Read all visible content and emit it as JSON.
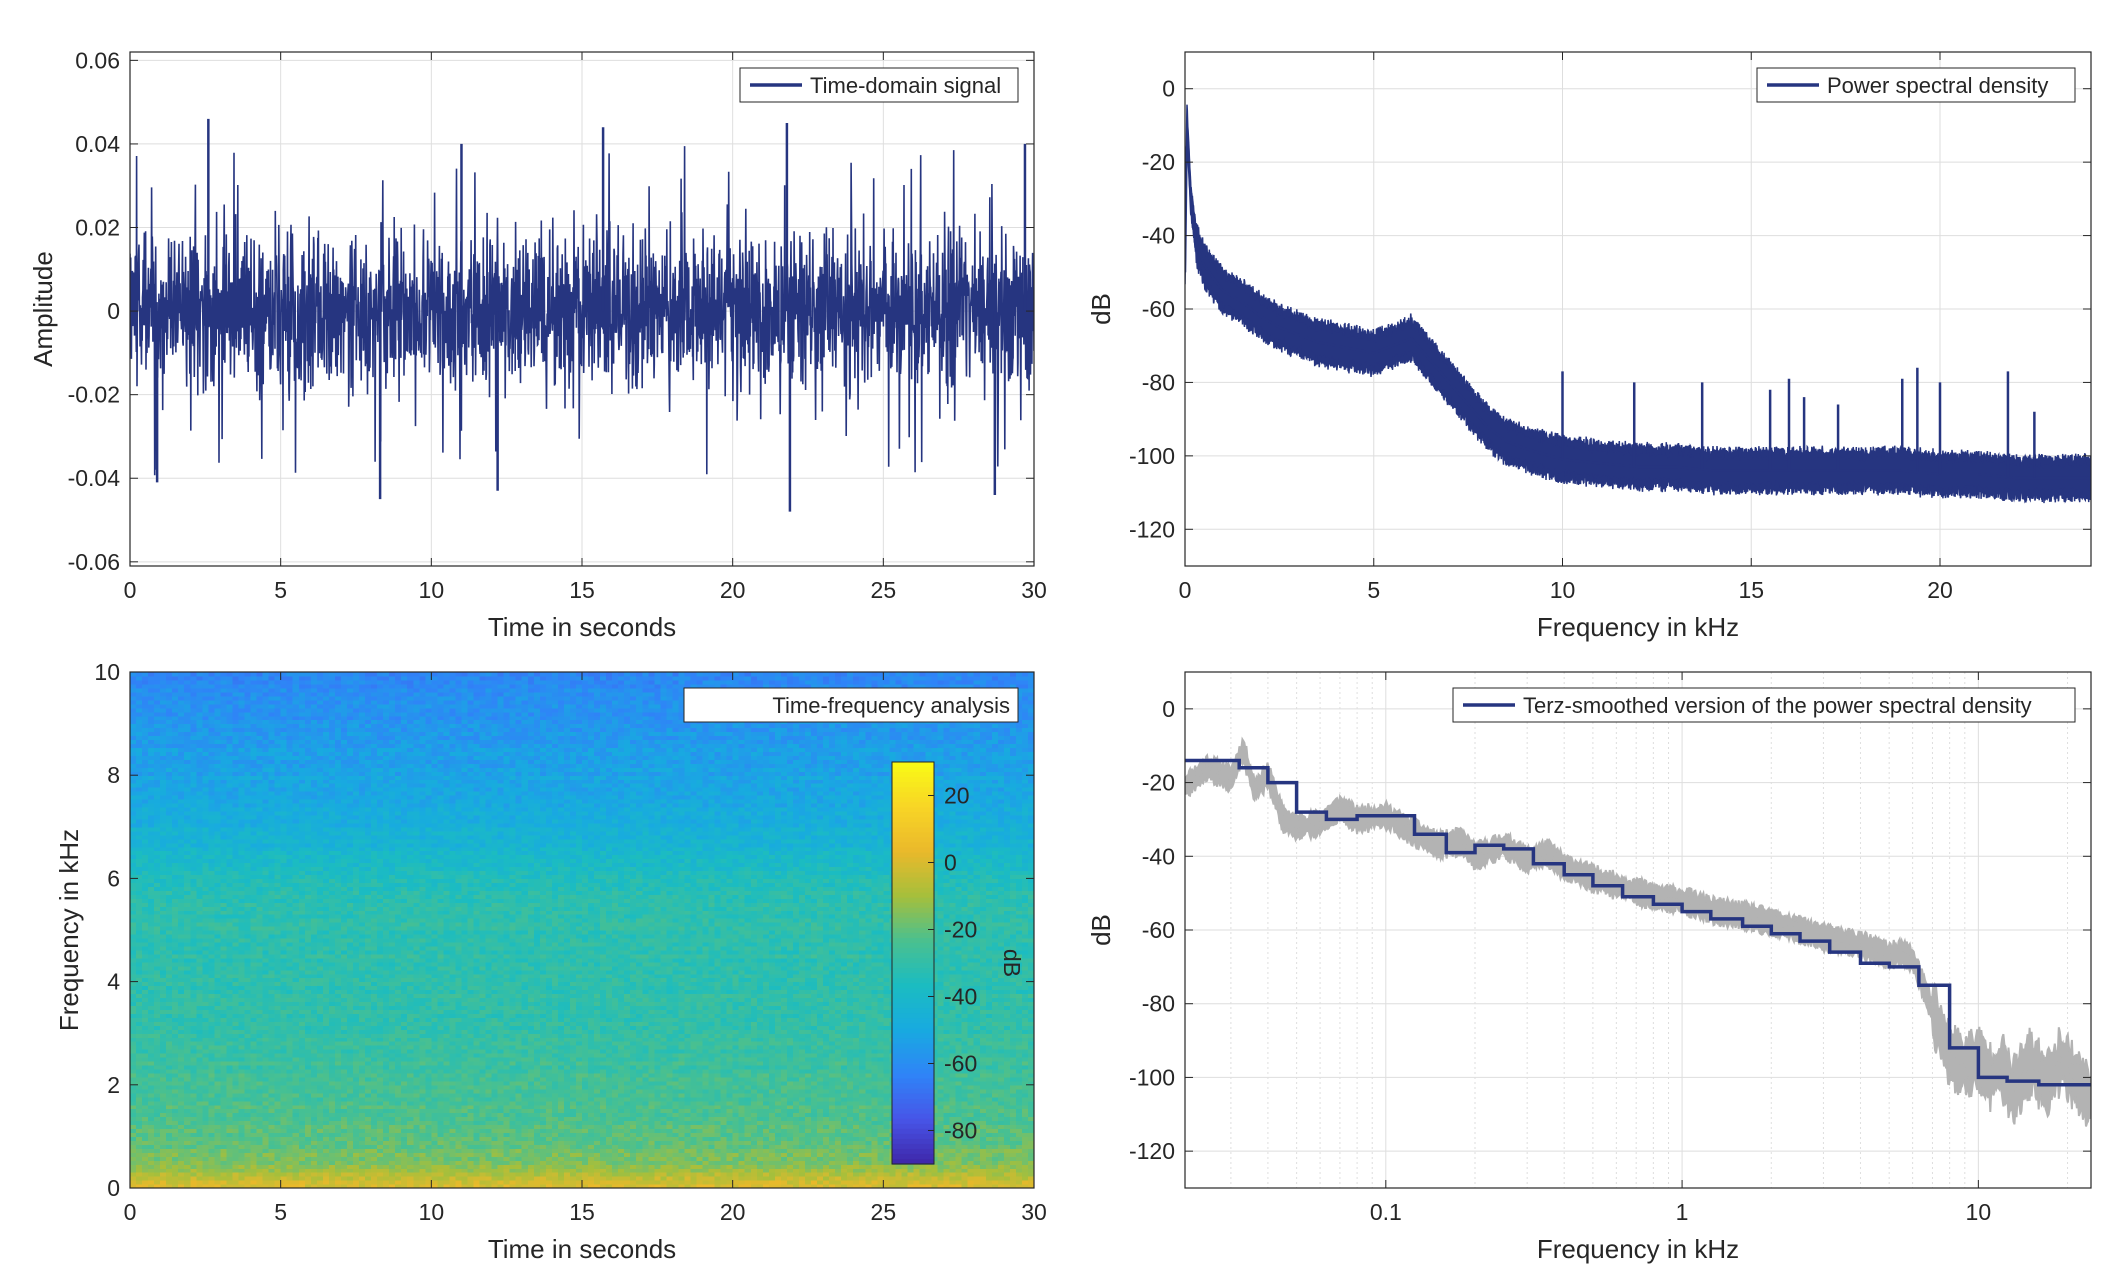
{
  "colors": {
    "signal": "#263580",
    "smoothed_raw": "#b3b3b3",
    "grid": "#dedede",
    "axis": "#262626",
    "colormap": [
      "#3e26a8",
      "#4755e8",
      "#2f84f7",
      "#18aae0",
      "#1bbcc1",
      "#4ac08f",
      "#a6bf3b",
      "#eab92b",
      "#f8d526",
      "#f9fb15"
    ]
  },
  "chart_data": [
    {
      "id": "time_domain",
      "type": "line",
      "legend": [
        "Time-domain signal"
      ],
      "legend_position": "top-right",
      "xlabel": "Time in seconds",
      "ylabel": "Amplitude",
      "xlim": [
        0,
        30
      ],
      "ylim": [
        -0.061,
        0.062
      ],
      "x_ticks": [
        0,
        5,
        10,
        15,
        20,
        25,
        30
      ],
      "x_tick_labels": [
        "0",
        "5",
        "10",
        "15",
        "20",
        "25",
        "30"
      ],
      "y_ticks": [
        -0.06,
        -0.04,
        -0.02,
        0,
        0.02,
        0.04,
        0.06
      ],
      "y_tick_labels": [
        "-0.06",
        "-0.04",
        "-0.02",
        "0",
        "0.02",
        "0.04",
        "0.06"
      ],
      "grid": true,
      "series": [
        {
          "name": "Time-domain signal",
          "description_stats": {
            "typical_range": [
              -0.02,
              0.02
            ],
            "max": 0.046,
            "min": -0.048
          },
          "peaks": [
            {
              "x": 2.6,
              "y": 0.046
            },
            {
              "x": 11.0,
              "y": 0.04
            },
            {
              "x": 15.7,
              "y": 0.044
            },
            {
              "x": 21.8,
              "y": 0.045
            },
            {
              "x": 29.7,
              "y": 0.04
            },
            {
              "x": 8.3,
              "y": -0.045
            },
            {
              "x": 12.2,
              "y": -0.043
            },
            {
              "x": 21.9,
              "y": -0.048
            },
            {
              "x": 28.7,
              "y": -0.044
            },
            {
              "x": 0.9,
              "y": -0.041
            }
          ]
        }
      ]
    },
    {
      "id": "psd",
      "type": "line",
      "legend": [
        "Power spectral density"
      ],
      "legend_position": "top-right",
      "xlabel": "Frequency in kHz",
      "ylabel": "dB",
      "xlim": [
        0,
        24
      ],
      "ylim": [
        -130,
        10
      ],
      "x_ticks": [
        0,
        5,
        10,
        15,
        20
      ],
      "x_tick_labels": [
        "0",
        "5",
        "10",
        "15",
        "20"
      ],
      "y_ticks": [
        0,
        -20,
        -40,
        -60,
        -80,
        -100,
        -120
      ],
      "y_tick_labels": [
        "0",
        "-20",
        "-40",
        "-60",
        "-80",
        "-100",
        "-120"
      ],
      "grid": true,
      "series": [
        {
          "name": "Power spectral density",
          "x": [
            0,
            0.05,
            0.15,
            0.3,
            0.5,
            1,
            1.5,
            2,
            2.5,
            3,
            3.5,
            4,
            5,
            5.5,
            6,
            6.5,
            7,
            7.5,
            8,
            8.5,
            9,
            10,
            11,
            12,
            13,
            14,
            15,
            16,
            17,
            18,
            19,
            20,
            21,
            22,
            23,
            24
          ],
          "y": [
            -50,
            -8,
            -30,
            -42,
            -48,
            -55,
            -58,
            -62,
            -65,
            -67,
            -69,
            -70,
            -72,
            -70,
            -68,
            -74,
            -80,
            -86,
            -92,
            -96,
            -98,
            -101,
            -102,
            -103,
            -103,
            -104,
            -104,
            -104,
            -104,
            -104,
            -104,
            -105,
            -105,
            -106,
            -106,
            -106
          ]
        }
      ],
      "spikes": [
        {
          "x": 10.0,
          "y": -77
        },
        {
          "x": 11.9,
          "y": -80
        },
        {
          "x": 13.7,
          "y": -80
        },
        {
          "x": 15.5,
          "y": -82
        },
        {
          "x": 16.0,
          "y": -79
        },
        {
          "x": 16.4,
          "y": -84
        },
        {
          "x": 17.3,
          "y": -86
        },
        {
          "x": 19.0,
          "y": -79
        },
        {
          "x": 19.4,
          "y": -76
        },
        {
          "x": 20.0,
          "y": -80
        },
        {
          "x": 21.8,
          "y": -77
        },
        {
          "x": 22.5,
          "y": -88
        }
      ]
    },
    {
      "id": "spectrogram",
      "type": "heatmap",
      "legend": [
        "Time-frequency analysis"
      ],
      "legend_position": "top-right",
      "xlabel": "Time in seconds",
      "ylabel": "Frequency in kHz",
      "xlim": [
        0,
        30
      ],
      "ylim": [
        0,
        10
      ],
      "x_ticks": [
        0,
        5,
        10,
        15,
        20,
        25,
        30
      ],
      "x_tick_labels": [
        "0",
        "5",
        "10",
        "15",
        "20",
        "25",
        "30"
      ],
      "y_ticks": [
        0,
        2,
        4,
        6,
        8,
        10
      ],
      "y_tick_labels": [
        "0",
        "2",
        "4",
        "6",
        "8",
        "10"
      ],
      "colorbar": {
        "label": "dB",
        "clim": [
          -90,
          30
        ],
        "ticks": [
          20,
          0,
          -20,
          -40,
          -60,
          -80
        ],
        "tick_labels": [
          "20",
          "0",
          "-20",
          "-40",
          "-60",
          "-80"
        ]
      },
      "level_by_frequency_khz": {
        "f": [
          0,
          0.2,
          0.5,
          1,
          2,
          3,
          4,
          5,
          5.5,
          6,
          6.5,
          7,
          8,
          9,
          10
        ],
        "db": [
          2,
          -6,
          -15,
          -21,
          -26,
          -29,
          -31,
          -31,
          -32,
          -35,
          -42,
          -46,
          -52,
          -57,
          -62
        ]
      }
    },
    {
      "id": "terz_smoothed",
      "type": "line",
      "legend": [
        "Terz-smoothed version of the power spectral density"
      ],
      "legend_position": "top-right",
      "xlabel": "Frequency in kHz",
      "ylabel": "dB",
      "x_scale": "log",
      "xlim": [
        0.021,
        24
      ],
      "ylim": [
        -130,
        10
      ],
      "x_ticks": [
        0.1,
        1,
        10
      ],
      "x_tick_labels": [
        "0.1",
        "1",
        "10"
      ],
      "y_ticks": [
        0,
        -20,
        -40,
        -60,
        -80,
        -100,
        -120
      ],
      "y_tick_labels": [
        "0",
        "-20",
        "-40",
        "-60",
        "-80",
        "-100",
        "-120"
      ],
      "grid": true,
      "series": [
        {
          "name": "Terz-smoothed version of the power spectral density",
          "step_edges": [
            0.021,
            0.032,
            0.04,
            0.05,
            0.063,
            0.08,
            0.1,
            0.125,
            0.16,
            0.2,
            0.25,
            0.315,
            0.4,
            0.5,
            0.63,
            0.8,
            1,
            1.25,
            1.6,
            2,
            2.5,
            3.15,
            4,
            5,
            6.3,
            8,
            10,
            12.5,
            16,
            20,
            24
          ],
          "levels": [
            -14,
            -16,
            -20,
            -28,
            -30,
            -29,
            -29,
            -34,
            -39,
            -37,
            -38,
            -42,
            -45,
            -48,
            -51,
            -53,
            -55,
            -57,
            -59,
            -61,
            -63,
            -66,
            -69,
            -70,
            -75,
            -92,
            -100,
            -101,
            -102,
            -102
          ]
        },
        {
          "name": "",
          "x": [
            0.021,
            0.025,
            0.03,
            0.033,
            0.036,
            0.04,
            0.045,
            0.05,
            0.06,
            0.07,
            0.08,
            0.1,
            0.12,
            0.15,
            0.18,
            0.2,
            0.25,
            0.3,
            0.35,
            0.4,
            0.5,
            0.6,
            0.8,
            1,
            1.3,
            1.6,
            2,
            2.5,
            3,
            4,
            5,
            5.5,
            6,
            6.5,
            7,
            7.5,
            8,
            9,
            10,
            11,
            12,
            13,
            15,
            17,
            19,
            21,
            23,
            24
          ],
          "y": [
            -21,
            -16,
            -19,
            -11,
            -22,
            -18,
            -30,
            -32,
            -31,
            -27,
            -30,
            -29,
            -33,
            -37,
            -36,
            -40,
            -37,
            -41,
            -39,
            -43,
            -46,
            -48,
            -51,
            -52,
            -55,
            -56,
            -58,
            -60,
            -62,
            -64,
            -67,
            -66,
            -68,
            -75,
            -82,
            -88,
            -94,
            -97,
            -95,
            -100,
            -97,
            -104,
            -96,
            -102,
            -95,
            -100,
            -104,
            -106
          ]
        }
      ]
    }
  ]
}
